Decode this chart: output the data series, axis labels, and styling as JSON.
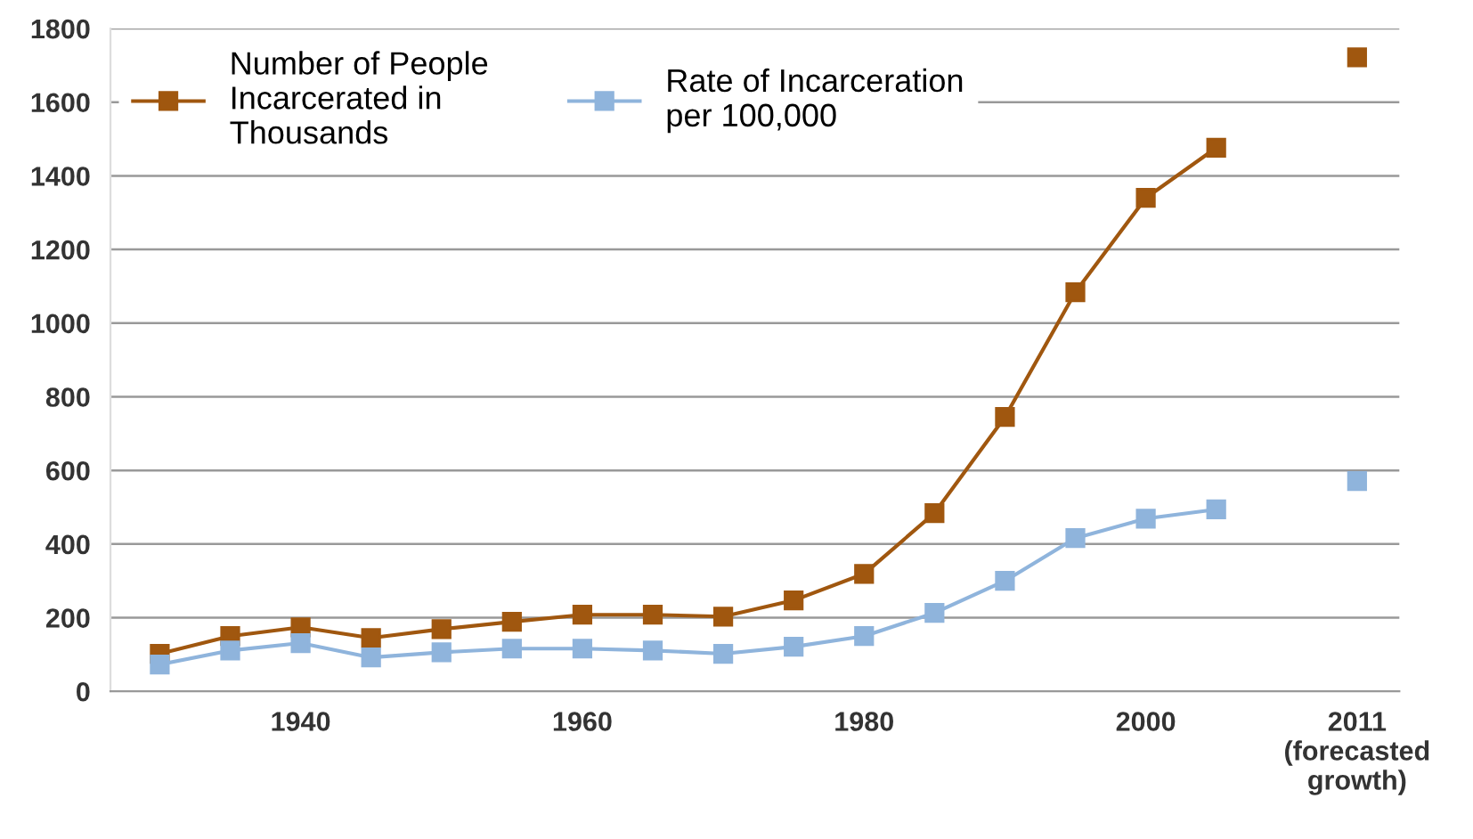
{
  "chart_data": {
    "type": "line",
    "categories": [
      null,
      null,
      "1940",
      null,
      null,
      null,
      "1960",
      null,
      null,
      null,
      "1980",
      null,
      null,
      null,
      "2000",
      null,
      null,
      "2011\n(forecasted\ngrowth)"
    ],
    "series": [
      {
        "name": "Number of People\nIncarcerated in\nThousands",
        "color": "#a0570f",
        "values": [
          102,
          150,
          174,
          145,
          169,
          189,
          208,
          208,
          203,
          247,
          319,
          484,
          745,
          1084,
          1340,
          1476,
          null,
          1722
        ]
      },
      {
        "name": "Rate of Incarceration\nper 100,000",
        "color": "#8fb4dc",
        "values": [
          73,
          111,
          131,
          92,
          106,
          116,
          116,
          111,
          102,
          121,
          150,
          213,
          300,
          416,
          469,
          494,
          null,
          571
        ]
      }
    ],
    "ylim": [
      0,
      1800
    ],
    "yticks": [
      0,
      200,
      400,
      600,
      800,
      1000,
      1200,
      1400,
      1600,
      1800
    ],
    "grid": "y",
    "legend": "top left",
    "marker": "square",
    "line_style": "solid"
  }
}
